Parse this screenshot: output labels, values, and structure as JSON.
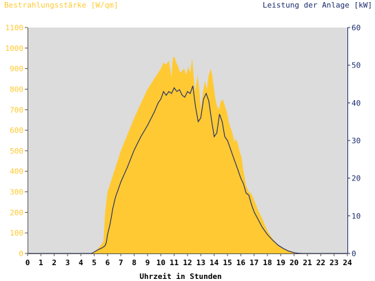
{
  "chart_data": {
    "type": "area",
    "title_left": "Bestrahlungsstärke [W/qm]",
    "title_right": "Leistung der Anlage [kW]",
    "xlabel": "Uhrzeit in Stunden",
    "xlim": [
      0,
      24
    ],
    "y_left_lim": [
      0,
      1100
    ],
    "y_right_lim": [
      0,
      60
    ],
    "x_ticks": [
      "0",
      "1",
      "2",
      "3",
      "4",
      "5",
      "6",
      "7",
      "8",
      "9",
      "10",
      "11",
      "12",
      "13",
      "14",
      "15",
      "16",
      "17",
      "18",
      "19",
      "20",
      "21",
      "22",
      "23",
      "24"
    ],
    "y_left_ticks": [
      "0",
      "100",
      "200",
      "300",
      "400",
      "500",
      "600",
      "700",
      "800",
      "900",
      "1000",
      "1100"
    ],
    "y_right_ticks": [
      "0",
      "10",
      "20",
      "30",
      "40",
      "50",
      "60"
    ],
    "grid": false,
    "colors": {
      "plot_background": "#dcdcdc",
      "irradiance_fill": "#ffc933",
      "power_line": "#1a2a6b",
      "left_axis_text": "#ffc933",
      "right_axis_text": "#1a2a6b"
    },
    "series": [
      {
        "axis": "left",
        "style": "area",
        "x": [
          0,
          4.8,
          5.0,
          5.2,
          5.5,
          5.7,
          5.8,
          5.9,
          6.0,
          6.3,
          6.6,
          7.0,
          7.5,
          8.0,
          8.5,
          9.0,
          9.5,
          9.8,
          10.0,
          10.2,
          10.4,
          10.6,
          10.8,
          10.9,
          11.0,
          11.15,
          11.3,
          11.45,
          11.6,
          11.75,
          11.9,
          12.05,
          12.2,
          12.35,
          12.5,
          12.6,
          12.75,
          12.9,
          13.0,
          13.15,
          13.3,
          13.45,
          13.6,
          13.75,
          13.85,
          13.95,
          14.1,
          14.2,
          14.35,
          14.5,
          14.65,
          14.8,
          14.95,
          15.1,
          15.25,
          15.4,
          15.5,
          15.6,
          15.75,
          15.9,
          16.05,
          16.2,
          16.4,
          16.6,
          16.8,
          17.0,
          17.3,
          17.6,
          18.0,
          18.4,
          18.8,
          19.2,
          19.6,
          20.0,
          20.3,
          20.6,
          24
        ],
        "values": [
          0,
          0,
          8,
          18,
          40,
          60,
          180,
          250,
          300,
          360,
          420,
          500,
          580,
          660,
          730,
          800,
          850,
          880,
          900,
          930,
          920,
          940,
          860,
          950,
          960,
          930,
          910,
          880,
          890,
          900,
          870,
          910,
          880,
          950,
          830,
          790,
          870,
          790,
          700,
          780,
          840,
          800,
          870,
          900,
          870,
          820,
          750,
          720,
          700,
          740,
          750,
          720,
          690,
          640,
          610,
          580,
          540,
          560,
          540,
          500,
          470,
          400,
          330,
          300,
          290,
          260,
          210,
          170,
          110,
          70,
          42,
          25,
          14,
          6,
          2,
          0,
          0
        ]
      },
      {
        "axis": "right",
        "style": "line",
        "x": [
          0,
          4.8,
          5.0,
          5.3,
          5.6,
          5.8,
          5.9,
          6.0,
          6.2,
          6.4,
          6.6,
          6.8,
          7.0,
          7.5,
          8.0,
          8.5,
          9.0,
          9.5,
          9.8,
          10.0,
          10.2,
          10.4,
          10.6,
          10.8,
          11.0,
          11.2,
          11.4,
          11.6,
          11.8,
          12.0,
          12.2,
          12.4,
          12.6,
          12.8,
          13.0,
          13.2,
          13.4,
          13.6,
          13.8,
          14.0,
          14.2,
          14.4,
          14.6,
          14.8,
          15.0,
          15.2,
          15.4,
          15.6,
          15.8,
          16.0,
          16.2,
          16.4,
          16.6,
          16.8,
          17.0,
          17.3,
          17.6,
          18.0,
          18.4,
          18.8,
          19.2,
          19.6,
          20.0,
          20.3,
          20.6,
          24
        ],
        "values": [
          0,
          0,
          0.4,
          1.0,
          1.5,
          2.0,
          2.8,
          5,
          8,
          12,
          15,
          17,
          19,
          23,
          27.5,
          31,
          34,
          37.5,
          40,
          41,
          43,
          42,
          43,
          42.5,
          44,
          43,
          43.5,
          42,
          41.5,
          43,
          42.5,
          44.5,
          39,
          35,
          36,
          41,
          42.5,
          40.5,
          35.5,
          31,
          32,
          37,
          35,
          31,
          30,
          28,
          26,
          24,
          22,
          20,
          18.5,
          16,
          15.5,
          13,
          11,
          9,
          7,
          5,
          3.5,
          2.2,
          1.3,
          0.6,
          0.2,
          0.05,
          0,
          0
        ]
      }
    ]
  }
}
